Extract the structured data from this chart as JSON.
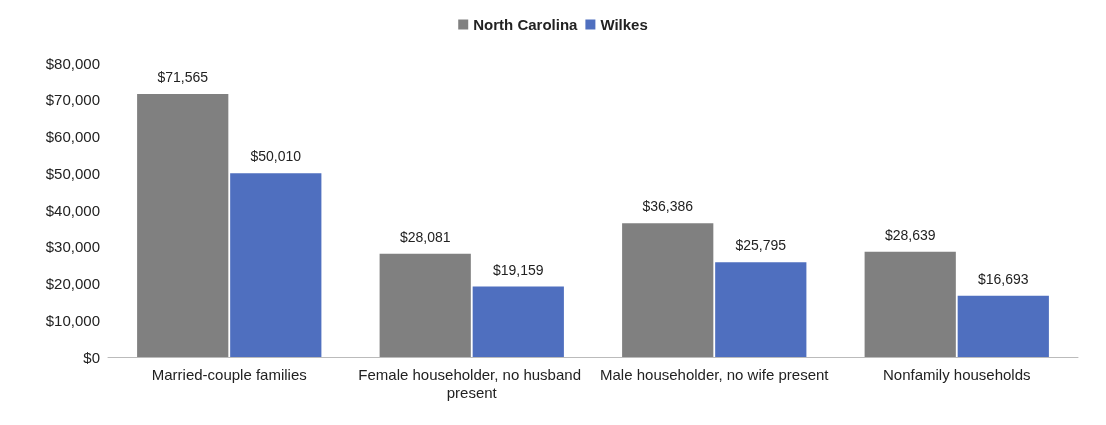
{
  "chart_data": {
    "type": "bar",
    "categories": [
      "Married-couple families",
      "Female householder, no husband present",
      "Male householder, no wife present",
      "Nonfamily households"
    ],
    "series": [
      {
        "name": "North Carolina",
        "color": "#808080",
        "values": [
          71565,
          28081,
          36386,
          28639
        ],
        "value_labels": [
          "$71,565",
          "$28,081",
          "$36,386",
          "$28,639"
        ]
      },
      {
        "name": "Wilkes",
        "color": "#4f6fbf",
        "values": [
          50010,
          19159,
          25795,
          16693
        ],
        "value_labels": [
          "$50,010",
          "$19,159",
          "$25,795",
          "$16,693"
        ]
      }
    ],
    "ylim": [
      0,
      80000
    ],
    "yticks": [
      {
        "value": 0,
        "label": "$0"
      },
      {
        "value": 10000,
        "label": "$10,000"
      },
      {
        "value": 20000,
        "label": "$20,000"
      },
      {
        "value": 30000,
        "label": "$30,000"
      },
      {
        "value": 40000,
        "label": "$40,000"
      },
      {
        "value": 50000,
        "label": "$50,000"
      },
      {
        "value": 60000,
        "label": "$60,000"
      },
      {
        "value": 70000,
        "label": "$70,000"
      },
      {
        "value": 80000,
        "label": "$80,000"
      }
    ],
    "grid": false,
    "legend": "top"
  }
}
